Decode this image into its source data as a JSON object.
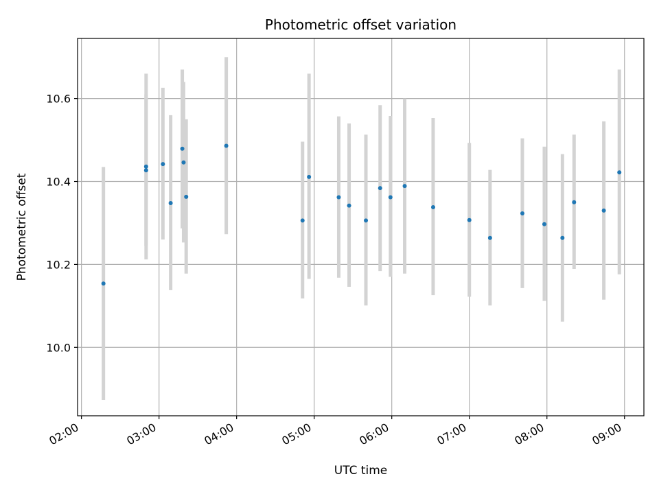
{
  "chart_data": {
    "type": "scatter",
    "title": "Photometric offset variation",
    "xlabel": "UTC time",
    "ylabel": "Photometric offset",
    "x_ticks": [
      "02:00",
      "03:00",
      "04:00",
      "05:00",
      "06:00",
      "07:00",
      "08:00",
      "09:00"
    ],
    "y_ticks": [
      "10.0",
      "10.2",
      "10.4",
      "10.6"
    ],
    "xlim": [
      "01:57",
      "09:15"
    ],
    "ylim": [
      9.835,
      10.745
    ],
    "grid": true,
    "colors": {
      "points": "#1f77b4",
      "errorbars": "#d3d3d3",
      "grid": "#b0b0b0"
    },
    "points": [
      {
        "x": "02:17",
        "y": 10.154,
        "ymin": 9.873,
        "ymax": 10.435
      },
      {
        "x": "02:50",
        "y": 10.427,
        "ymin": 10.245,
        "ymax": 10.61
      },
      {
        "x": "02:50",
        "y": 10.436,
        "ymin": 10.212,
        "ymax": 10.66
      },
      {
        "x": "03:03",
        "y": 10.442,
        "ymin": 10.26,
        "ymax": 10.626
      },
      {
        "x": "03:09",
        "y": 10.348,
        "ymin": 10.138,
        "ymax": 10.56
      },
      {
        "x": "03:18",
        "y": 10.479,
        "ymin": 10.287,
        "ymax": 10.67
      },
      {
        "x": "03:19",
        "y": 10.446,
        "ymin": 10.253,
        "ymax": 10.64
      },
      {
        "x": "03:21",
        "y": 10.363,
        "ymin": 10.178,
        "ymax": 10.55
      },
      {
        "x": "03:52",
        "y": 10.486,
        "ymin": 10.273,
        "ymax": 10.7
      },
      {
        "x": "04:51",
        "y": 10.306,
        "ymin": 10.118,
        "ymax": 10.496
      },
      {
        "x": "04:56",
        "y": 10.411,
        "ymin": 10.165,
        "ymax": 10.66
      },
      {
        "x": "05:19",
        "y": 10.362,
        "ymin": 10.168,
        "ymax": 10.557
      },
      {
        "x": "05:27",
        "y": 10.342,
        "ymin": 10.146,
        "ymax": 10.54
      },
      {
        "x": "05:40",
        "y": 10.306,
        "ymin": 10.101,
        "ymax": 10.513
      },
      {
        "x": "05:51",
        "y": 10.384,
        "ymin": 10.184,
        "ymax": 10.584
      },
      {
        "x": "05:59",
        "y": 10.362,
        "ymin": 10.17,
        "ymax": 10.558
      },
      {
        "x": "06:10",
        "y": 10.389,
        "ymin": 10.178,
        "ymax": 10.6
      },
      {
        "x": "06:32",
        "y": 10.338,
        "ymin": 10.126,
        "ymax": 10.553
      },
      {
        "x": "07:00",
        "y": 10.307,
        "ymin": 10.122,
        "ymax": 10.493
      },
      {
        "x": "07:16",
        "y": 10.264,
        "ymin": 10.101,
        "ymax": 10.428
      },
      {
        "x": "07:41",
        "y": 10.323,
        "ymin": 10.143,
        "ymax": 10.504
      },
      {
        "x": "07:58",
        "y": 10.297,
        "ymin": 10.112,
        "ymax": 10.484
      },
      {
        "x": "08:12",
        "y": 10.264,
        "ymin": 10.062,
        "ymax": 10.466
      },
      {
        "x": "08:21",
        "y": 10.35,
        "ymin": 10.189,
        "ymax": 10.513
      },
      {
        "x": "08:44",
        "y": 10.33,
        "ymin": 10.115,
        "ymax": 10.545
      },
      {
        "x": "08:56",
        "y": 10.422,
        "ymin": 10.176,
        "ymax": 10.67
      }
    ]
  }
}
